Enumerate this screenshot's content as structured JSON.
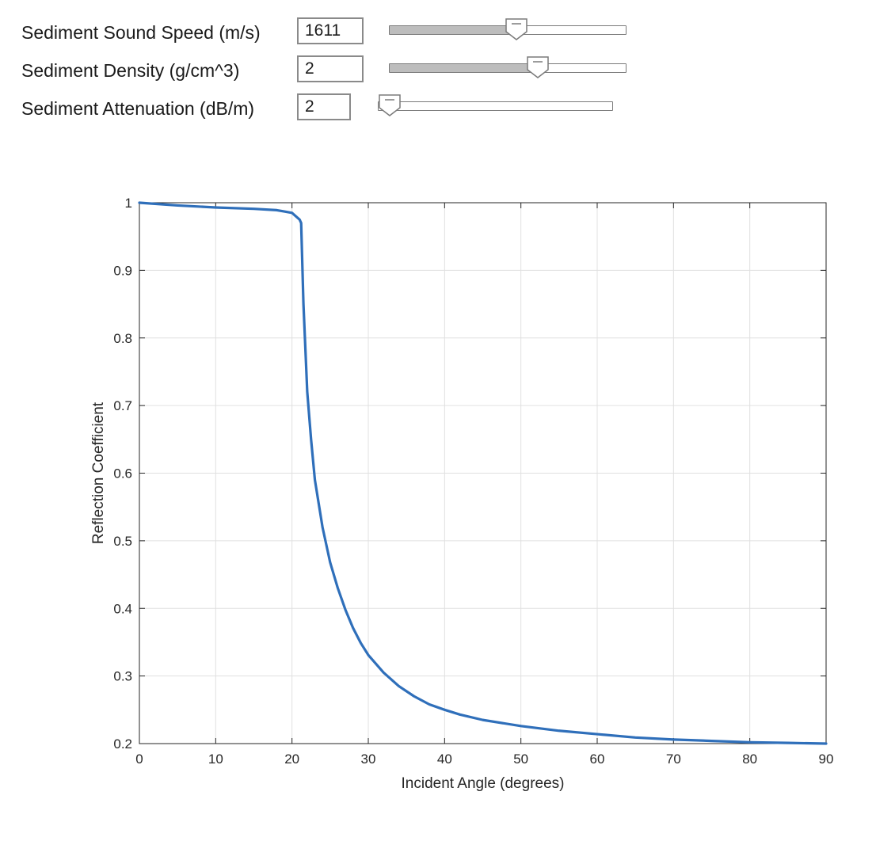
{
  "controls": [
    {
      "label": "Sediment Sound Speed (m/s)",
      "value": "1611",
      "slider_fraction": 0.54
    },
    {
      "label": "Sediment Density (g/cm^3)",
      "value": "2",
      "slider_fraction": 0.64
    },
    {
      "label": "Sediment Attenuation (dB/m)",
      "value": "2",
      "slider_fraction": 0.0
    }
  ],
  "colors": {
    "line": "#2f6fba",
    "grid": "#e0e0e0",
    "axis": "#262626",
    "slider_fill": "#bdbdbd"
  },
  "chart_data": {
    "type": "line",
    "xlabel": "Incident Angle (degrees)",
    "ylabel": "Reflection Coefficient",
    "xlim": [
      0,
      90
    ],
    "ylim": [
      0.2,
      1
    ],
    "xticks": [
      0,
      10,
      20,
      30,
      40,
      50,
      60,
      70,
      80,
      90
    ],
    "yticks": [
      0.2,
      0.3,
      0.4,
      0.5,
      0.6,
      0.7,
      0.8,
      0.9,
      1
    ],
    "grid": true,
    "series": [
      {
        "x": [
          0,
          5,
          10,
          15,
          18,
          19,
          20,
          20.5,
          21,
          21.2,
          21.5,
          22,
          22.5,
          23,
          24,
          25,
          26,
          27,
          28,
          29,
          30,
          32,
          34,
          36,
          38,
          40,
          42,
          45,
          50,
          55,
          60,
          65,
          70,
          75,
          80,
          85,
          90
        ],
        "y": [
          1.0,
          0.996,
          0.993,
          0.991,
          0.989,
          0.987,
          0.985,
          0.98,
          0.975,
          0.97,
          0.85,
          0.72,
          0.65,
          0.59,
          0.52,
          0.468,
          0.43,
          0.398,
          0.371,
          0.349,
          0.331,
          0.305,
          0.285,
          0.27,
          0.258,
          0.25,
          0.243,
          0.235,
          0.226,
          0.219,
          0.214,
          0.209,
          0.206,
          0.204,
          0.202,
          0.201,
          0.2
        ]
      }
    ]
  }
}
